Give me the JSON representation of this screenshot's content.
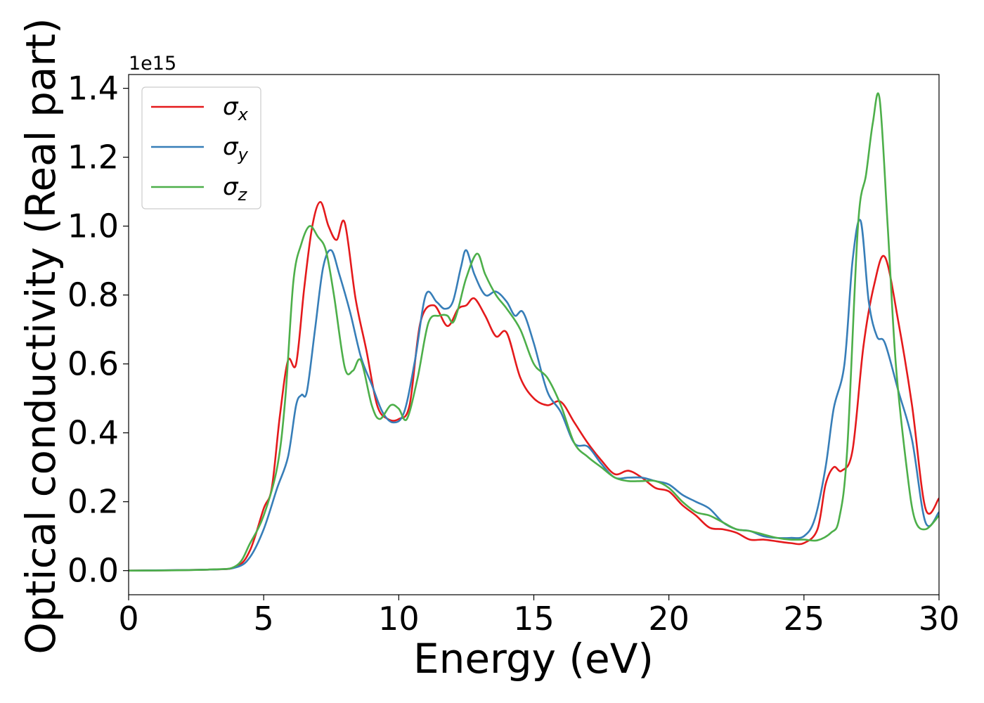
{
  "chart_data": {
    "type": "line",
    "xlabel": "Energy (eV)",
    "ylabel": "Optical conductivity (Real part)",
    "y_multiplier": "1e15",
    "xlim": [
      0,
      30
    ],
    "ylim": [
      -0.07,
      1.44
    ],
    "xticks": [
      0,
      5,
      10,
      15,
      20,
      25,
      30
    ],
    "xtick_labels": [
      "0",
      "5",
      "10",
      "15",
      "20",
      "25",
      "30"
    ],
    "yticks": [
      0.0,
      0.2,
      0.4,
      0.6,
      0.8,
      1.0,
      1.2,
      1.4
    ],
    "ytick_labels": [
      "0.0",
      "0.2",
      "0.4",
      "0.6",
      "0.8",
      "1.0",
      "1.2",
      "1.4"
    ],
    "grid": false,
    "legend_position": "top-left",
    "series": [
      {
        "name": "σx",
        "symbol": "σ",
        "subscript": "x",
        "color": "#e41a1c",
        "x": [
          0,
          3,
          4,
          4.5,
          5,
          5.3,
          5.6,
          5.9,
          6.2,
          6.5,
          6.8,
          7.1,
          7.4,
          7.7,
          8.0,
          8.4,
          8.8,
          9.2,
          9.6,
          10.0,
          10.4,
          10.8,
          11.3,
          11.8,
          12.2,
          12.5,
          12.8,
          13.2,
          13.6,
          14.0,
          14.5,
          15.0,
          15.5,
          16.0,
          16.5,
          17.0,
          17.5,
          18.0,
          18.5,
          19.0,
          19.5,
          20.0,
          20.5,
          21.0,
          21.5,
          22.0,
          22.5,
          23.0,
          23.5,
          24.0,
          24.5,
          25.0,
          25.5,
          25.8,
          26.1,
          26.4,
          26.8,
          27.2,
          27.6,
          28.0,
          28.5,
          29.0,
          29.5,
          30.0
        ],
        "values": [
          0.0,
          0.003,
          0.012,
          0.06,
          0.18,
          0.24,
          0.45,
          0.61,
          0.6,
          0.82,
          1.0,
          1.07,
          1.0,
          0.96,
          1.01,
          0.79,
          0.64,
          0.48,
          0.44,
          0.44,
          0.48,
          0.72,
          0.77,
          0.71,
          0.76,
          0.77,
          0.79,
          0.74,
          0.68,
          0.69,
          0.56,
          0.5,
          0.48,
          0.49,
          0.43,
          0.37,
          0.32,
          0.28,
          0.29,
          0.27,
          0.24,
          0.23,
          0.19,
          0.16,
          0.125,
          0.12,
          0.11,
          0.09,
          0.09,
          0.085,
          0.08,
          0.08,
          0.12,
          0.25,
          0.3,
          0.29,
          0.35,
          0.65,
          0.83,
          0.91,
          0.72,
          0.48,
          0.18,
          0.21
        ]
      },
      {
        "name": "σy",
        "symbol": "σ",
        "subscript": "y",
        "color": "#377eb8",
        "x": [
          0,
          3,
          4,
          4.5,
          5,
          5.5,
          5.9,
          6.2,
          6.4,
          6.6,
          6.9,
          7.2,
          7.5,
          7.8,
          8.2,
          8.6,
          9.0,
          9.4,
          9.8,
          10.2,
          10.6,
          11.0,
          11.4,
          11.7,
          12.0,
          12.3,
          12.5,
          12.8,
          13.2,
          13.6,
          14.0,
          14.3,
          14.6,
          15.0,
          15.5,
          16.0,
          16.5,
          17.0,
          17.5,
          18.0,
          18.5,
          19.0,
          19.5,
          20.0,
          20.5,
          21.0,
          21.5,
          22.0,
          22.5,
          23.0,
          23.5,
          24.0,
          24.5,
          25.0,
          25.4,
          25.8,
          26.1,
          26.5,
          26.8,
          27.1,
          27.4,
          27.7,
          28.0,
          28.5,
          29.0,
          29.5,
          30.0
        ],
        "values": [
          0.0,
          0.003,
          0.01,
          0.04,
          0.12,
          0.24,
          0.33,
          0.48,
          0.51,
          0.52,
          0.7,
          0.88,
          0.93,
          0.86,
          0.75,
          0.62,
          0.54,
          0.46,
          0.43,
          0.46,
          0.61,
          0.8,
          0.78,
          0.76,
          0.78,
          0.88,
          0.93,
          0.86,
          0.8,
          0.81,
          0.78,
          0.74,
          0.75,
          0.66,
          0.52,
          0.46,
          0.37,
          0.36,
          0.31,
          0.27,
          0.27,
          0.27,
          0.26,
          0.25,
          0.22,
          0.2,
          0.18,
          0.14,
          0.12,
          0.115,
          0.1,
          0.095,
          0.095,
          0.1,
          0.15,
          0.3,
          0.47,
          0.6,
          0.9,
          1.015,
          0.78,
          0.68,
          0.66,
          0.52,
          0.38,
          0.14,
          0.17
        ]
      },
      {
        "name": "σz",
        "symbol": "σ",
        "subscript": "z",
        "color": "#4daf4a",
        "x": [
          0,
          3,
          4,
          4.5,
          5,
          5.5,
          5.8,
          6.1,
          6.4,
          6.7,
          7.0,
          7.3,
          7.6,
          8.0,
          8.3,
          8.6,
          9.0,
          9.3,
          9.7,
          10.0,
          10.3,
          10.7,
          11.1,
          11.5,
          11.8,
          12.0,
          12.2,
          12.5,
          12.9,
          13.2,
          13.6,
          14.0,
          14.5,
          15.0,
          15.5,
          16.0,
          16.5,
          17.0,
          17.5,
          18.0,
          18.5,
          19.0,
          19.5,
          20.0,
          20.5,
          21.0,
          21.5,
          22.0,
          22.5,
          23.0,
          23.5,
          24.0,
          24.5,
          25.0,
          25.5,
          26.0,
          26.3,
          26.6,
          27.0,
          27.3,
          27.55,
          27.8,
          28.1,
          28.4,
          28.8,
          29.1,
          29.5,
          30.0
        ],
        "values": [
          0.0,
          0.003,
          0.015,
          0.08,
          0.16,
          0.3,
          0.5,
          0.84,
          0.95,
          1.0,
          0.97,
          0.93,
          0.8,
          0.59,
          0.58,
          0.61,
          0.48,
          0.44,
          0.48,
          0.47,
          0.44,
          0.56,
          0.72,
          0.74,
          0.74,
          0.72,
          0.76,
          0.85,
          0.92,
          0.86,
          0.8,
          0.76,
          0.7,
          0.6,
          0.56,
          0.48,
          0.37,
          0.33,
          0.3,
          0.27,
          0.26,
          0.26,
          0.26,
          0.24,
          0.2,
          0.17,
          0.16,
          0.14,
          0.12,
          0.115,
          0.105,
          0.095,
          0.09,
          0.09,
          0.088,
          0.11,
          0.15,
          0.35,
          1.0,
          1.15,
          1.3,
          1.37,
          1.0,
          0.6,
          0.3,
          0.15,
          0.12,
          0.16
        ]
      }
    ]
  }
}
